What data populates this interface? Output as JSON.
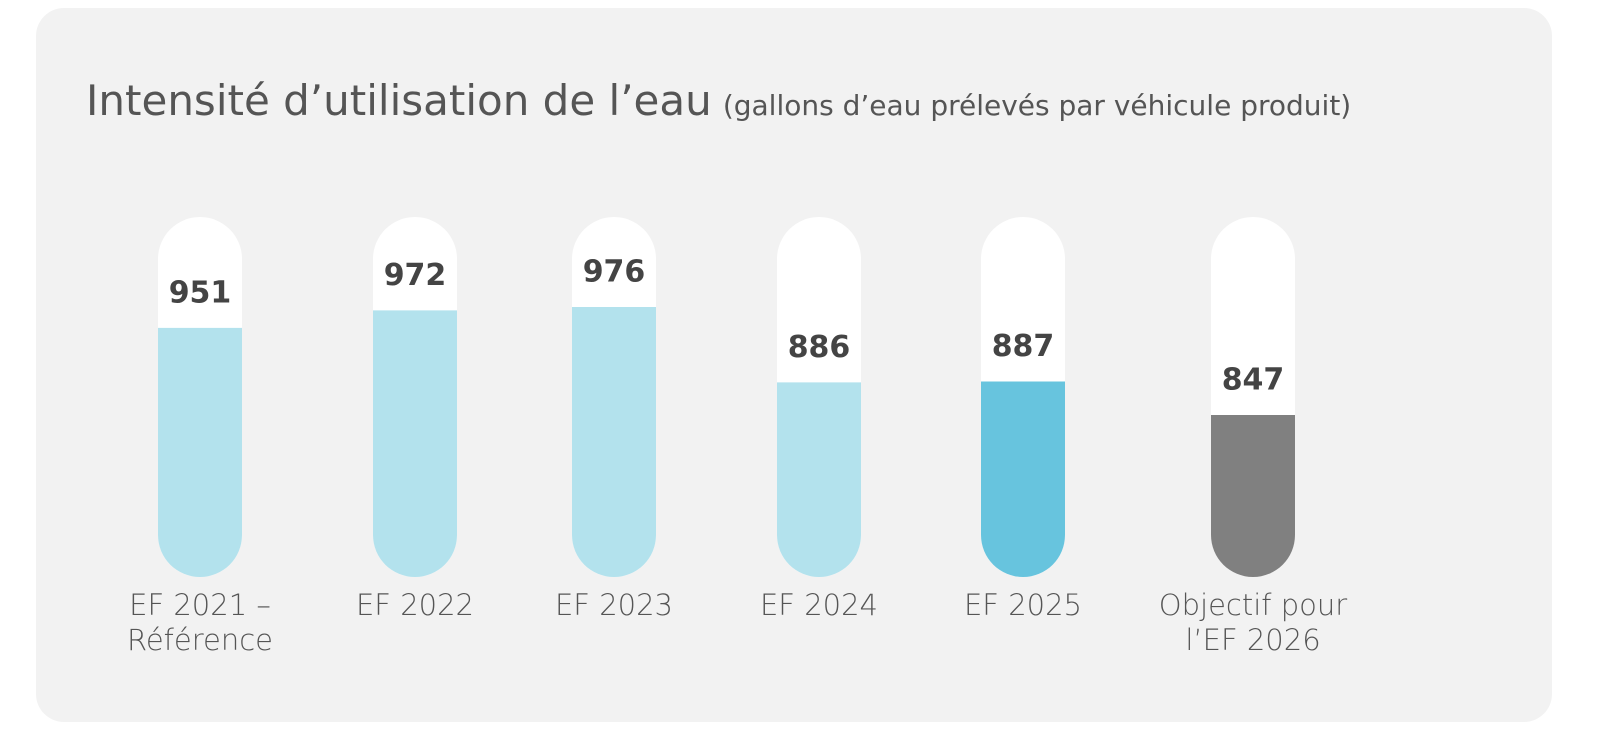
{
  "chart_data": {
    "type": "bar",
    "title": "Intensité d’utilisation de l’eau",
    "subtitle": "(gallons d’eau prélevés par véhicule produit)",
    "categories": [
      "EF 2021 –\nRéférence",
      "EF 2022",
      "EF 2023",
      "EF 2024",
      "EF 2025",
      "Objectif pour\nl’EF 2026"
    ],
    "values": [
      951,
      972,
      976,
      886,
      887,
      847
    ],
    "colors": [
      "#b3e2ed",
      "#b3e2ed",
      "#b3e2ed",
      "#b3e2ed",
      "#67c4de",
      "#808080"
    ]
  }
}
